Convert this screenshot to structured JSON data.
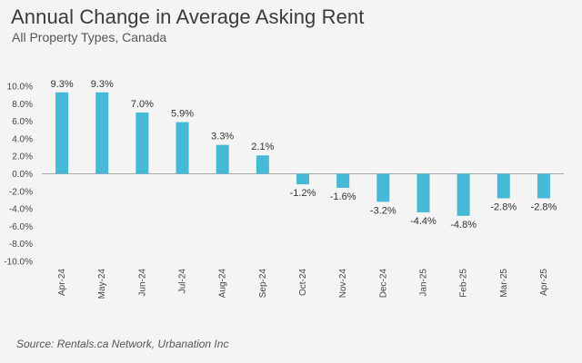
{
  "title": "Annual Change in Average Asking Rent",
  "subtitle": "All Property Types, Canada",
  "source": "Source: Rentals.ca Network, Urbanation Inc",
  "colors": {
    "bar": "#45b9d6",
    "baseline": "#a9a9a9",
    "background": "#f4f4f4"
  },
  "chart_data": {
    "type": "bar",
    "title": "Annual Change in Average Asking Rent",
    "subtitle": "All Property Types, Canada",
    "xlabel": "",
    "ylabel": "",
    "categories": [
      "Apr-24",
      "May-24",
      "Jun-24",
      "Jul-24",
      "Aug-24",
      "Sep-24",
      "Oct-24",
      "Nov-24",
      "Dec-24",
      "Jan-25",
      "Feb-25",
      "Mar-25",
      "Apr-25"
    ],
    "values": [
      9.3,
      9.3,
      7.0,
      5.9,
      3.3,
      2.1,
      -1.2,
      -1.6,
      -3.2,
      -4.4,
      -4.8,
      -2.8,
      -2.8
    ],
    "data_labels": [
      "9.3%",
      "9.3%",
      "7.0%",
      "5.9%",
      "3.3%",
      "2.1%",
      "-1.2%",
      "-1.6%",
      "-3.2%",
      "-4.4%",
      "-4.8%",
      "-2.8%",
      "-2.8%"
    ],
    "ylim": [
      -10,
      10
    ],
    "yticks": [
      10,
      8,
      6,
      4,
      2,
      0,
      -2,
      -4,
      -6,
      -8,
      -10
    ],
    "ytick_labels": [
      "10.0%",
      "8.0%",
      "6.0%",
      "4.0%",
      "2.0%",
      "0.0%",
      "-2.0%",
      "-4.0%",
      "-6.0%",
      "-8.0%",
      "-10.0%"
    ],
    "grid": false,
    "legend": "none"
  }
}
